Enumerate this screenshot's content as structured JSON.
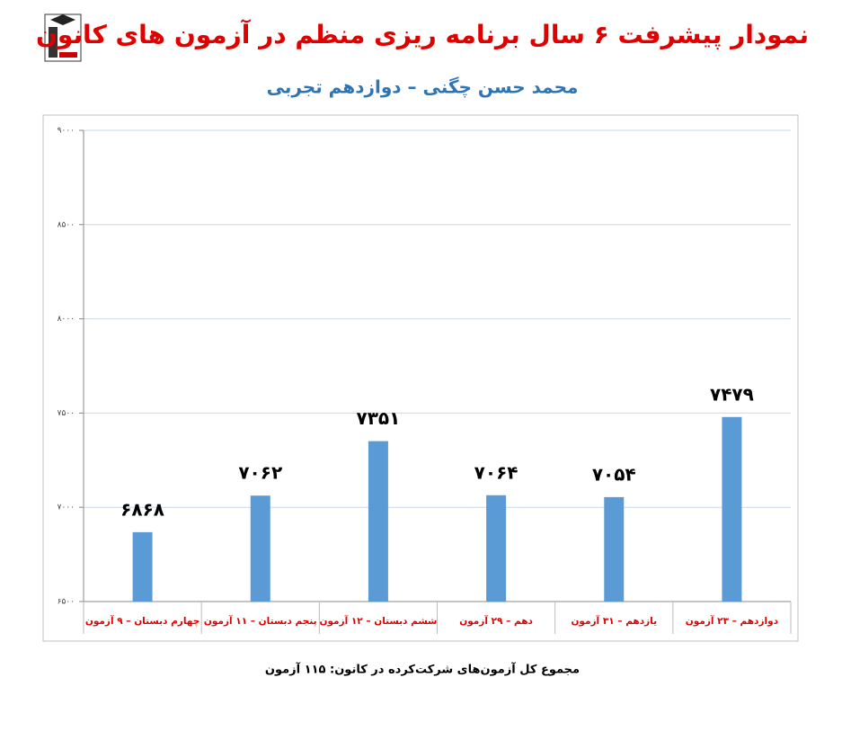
{
  "chart_data": {
    "type": "bar",
    "title": "نمودار پیشرفت ۶ سال برنامه ریزی منظم در آزمون های کانون",
    "subtitle": "محمد حسن چگنی – دوازدهم تجربی",
    "footnote": "مجموع کل آزمون‌های شرکت‌کرده در کانون: ۱۱۵ آزمون",
    "categories": [
      "چهارم دبستان – ۹ آزمون",
      "پنجم دبستان – ۱۱ آزمون",
      "ششم دبستان – ۱۲ آزمون",
      "دهم – ۲۹ آزمون",
      "یازدهم – ۳۱ آزمون",
      "دوازدهم – ۲۳ آزمون"
    ],
    "values": [
      6868,
      7062,
      7351,
      7064,
      7054,
      7479
    ],
    "value_labels": [
      "۶۸۶۸",
      "۷۰۶۲",
      "۷۳۵۱",
      "۷۰۶۴",
      "۷۰۵۴",
      "۷۴۷۹"
    ],
    "color": "#5b9bd5",
    "ylim": [
      6500,
      9000
    ],
    "yticks": [
      {
        "value": 6500,
        "label": "۶۵۰۰"
      },
      {
        "value": 7000,
        "label": "۷۰۰۰"
      },
      {
        "value": 7500,
        "label": "۷۵۰۰"
      },
      {
        "value": 8000,
        "label": "۸۰۰۰"
      },
      {
        "value": 8500,
        "label": "۸۵۰۰"
      },
      {
        "value": 9000,
        "label": "۹۰۰۰"
      }
    ],
    "grid": true
  }
}
